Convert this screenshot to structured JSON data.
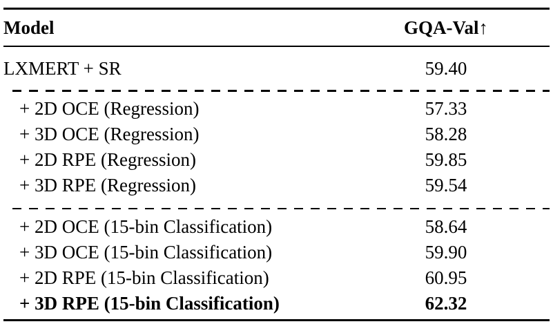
{
  "page": {
    "background": "#ffffff",
    "text_color": "#000000"
  },
  "table": {
    "header": {
      "model_col": "Model",
      "metric_col": "GQA-Val",
      "metric_arrow": "↑"
    },
    "baseline": {
      "model": "LXMERT + SR",
      "value": "59.40"
    },
    "sections": [
      {
        "name": "regression",
        "rows": [
          {
            "model": "+ 2D OCE (Regression)",
            "value": "57.33",
            "bold": false
          },
          {
            "model": "+ 3D OCE (Regression)",
            "value": "58.28",
            "bold": false
          },
          {
            "model": "+ 2D RPE (Regression)",
            "value": "59.85",
            "bold": false
          },
          {
            "model": "+ 3D RPE (Regression)",
            "value": "59.54",
            "bold": false
          }
        ]
      },
      {
        "name": "classification",
        "rows": [
          {
            "model": "+ 2D OCE (15-bin Classification)",
            "value": "58.64",
            "bold": false
          },
          {
            "model": "+ 3D OCE (15-bin Classification)",
            "value": "59.90",
            "bold": false
          },
          {
            "model": "+ 2D RPE (15-bin Classification)",
            "value": "60.95",
            "bold": false
          },
          {
            "model": "+ 3D RPE (15-bin Classification)",
            "value": "62.32",
            "bold": true
          }
        ]
      }
    ]
  },
  "chart_data": {
    "type": "table",
    "columns": [
      "Model",
      "GQA-Val↑"
    ],
    "rows": [
      [
        "LXMERT + SR",
        59.4
      ],
      [
        "+ 2D OCE (Regression)",
        57.33
      ],
      [
        "+ 3D OCE (Regression)",
        58.28
      ],
      [
        "+ 2D RPE (Regression)",
        59.85
      ],
      [
        "+ 3D RPE (Regression)",
        59.54
      ],
      [
        "+ 2D OCE (15-bin Classification)",
        58.64
      ],
      [
        "+ 3D OCE (15-bin Classification)",
        59.9
      ],
      [
        "+ 2D RPE (15-bin Classification)",
        60.95
      ],
      [
        "+ 3D RPE (15-bin Classification)",
        62.32
      ]
    ],
    "notes": "62.32 is rendered in bold (best result)."
  }
}
